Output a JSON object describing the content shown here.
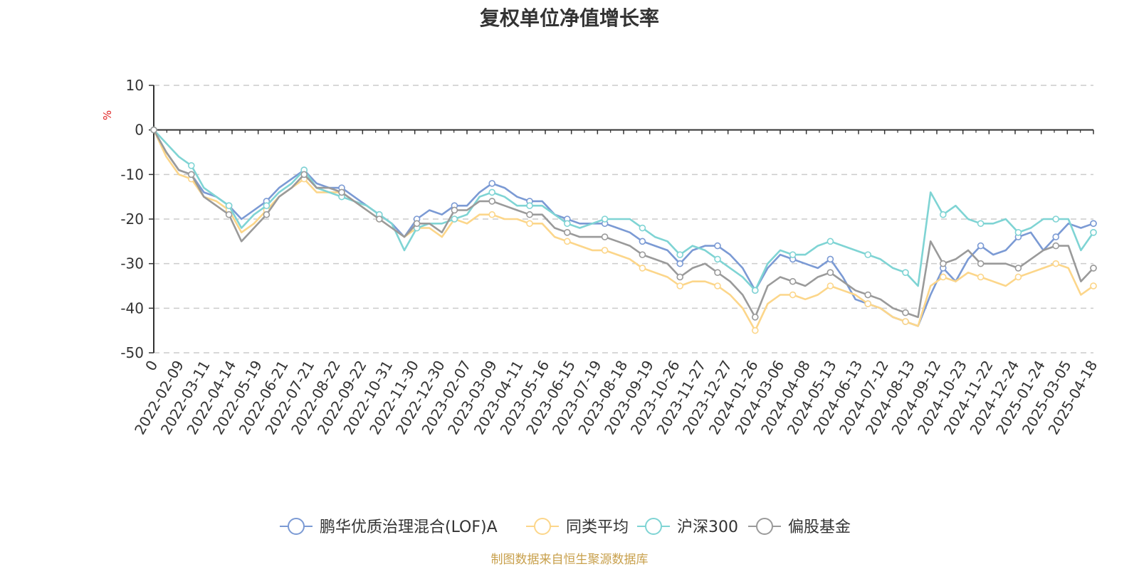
{
  "chart_data": {
    "type": "line",
    "title": "复权单位净值增长率",
    "ylabel": "%",
    "ylim": [
      -50,
      10
    ],
    "yticks": [
      10,
      0,
      -10,
      -20,
      -30,
      -40,
      -50
    ],
    "grid": true,
    "legend_position": "bottom",
    "source": "制图数据来自恒生聚源数据库",
    "x_tick_labels": [
      "0",
      "2022-02-09",
      "2022-03-11",
      "2022-04-14",
      "2022-05-19",
      "2022-06-21",
      "2022-07-21",
      "2022-08-22",
      "2022-09-22",
      "2022-10-31",
      "2022-11-30",
      "2022-12-30",
      "2023-02-07",
      "2023-03-09",
      "2023-04-11",
      "2023-05-16",
      "2023-06-15",
      "2023-07-19",
      "2023-08-18",
      "2023-09-19",
      "2023-10-26",
      "2023-11-27",
      "2023-12-27",
      "2024-01-26",
      "2024-03-06",
      "2024-04-08",
      "2024-05-13",
      "2024-06-13",
      "2024-07-12",
      "2024-08-13",
      "2024-09-12",
      "2024-10-23",
      "2024-11-22",
      "2024-12-24",
      "2025-01-24",
      "2025-03-05",
      "2025-04-18"
    ],
    "series": [
      {
        "name": "鹏华优质治理混合(LOF)A",
        "color": "#7b9ad4",
        "values": [
          0,
          -5,
          -9,
          -10,
          -14,
          -15,
          -17,
          -20,
          -18,
          -16,
          -13,
          -11,
          -9,
          -12,
          -13,
          -13,
          -15,
          -17,
          -19,
          -21,
          -24,
          -20,
          -18,
          -19,
          -17,
          -17,
          -14,
          -12,
          -13,
          -15,
          -16,
          -16,
          -19,
          -20,
          -21,
          -21,
          -21,
          -22,
          -23,
          -25,
          -26,
          -27,
          -30,
          -27,
          -26,
          -26,
          -28,
          -31,
          -36,
          -31,
          -28,
          -29,
          -30,
          -31,
          -29,
          -33,
          -38,
          -39,
          -40,
          -42,
          -43,
          -44,
          -37,
          -31,
          -34,
          -29,
          -26,
          -28,
          -27,
          -24,
          -23,
          -27,
          -24,
          -21,
          -22,
          -21
        ]
      },
      {
        "name": "同类平均",
        "color": "#fcd68a",
        "values": [
          0,
          -6,
          -10,
          -11,
          -15,
          -16,
          -18,
          -23,
          -21,
          -18,
          -15,
          -13,
          -11,
          -14,
          -14,
          -14,
          -16,
          -18,
          -20,
          -22,
          -24,
          -22,
          -22,
          -24,
          -20,
          -21,
          -19,
          -19,
          -20,
          -20,
          -21,
          -21,
          -24,
          -25,
          -26,
          -27,
          -27,
          -28,
          -29,
          -31,
          -32,
          -33,
          -35,
          -34,
          -34,
          -35,
          -37,
          -40,
          -45,
          -39,
          -37,
          -37,
          -38,
          -37,
          -35,
          -36,
          -37,
          -39,
          -40,
          -42,
          -43,
          -44,
          -35,
          -33,
          -34,
          -32,
          -33,
          -34,
          -35,
          -33,
          -32,
          -31,
          -30,
          -31,
          -37,
          -35
        ]
      },
      {
        "name": "沪深300",
        "color": "#7fd4d4",
        "values": [
          0,
          -3,
          -6,
          -8,
          -13,
          -15,
          -17,
          -22,
          -19,
          -17,
          -14,
          -12,
          -9,
          -13,
          -14,
          -15,
          -16,
          -17,
          -19,
          -21,
          -27,
          -22,
          -21,
          -21,
          -20,
          -19,
          -15,
          -14,
          -15,
          -17,
          -17,
          -17,
          -19,
          -21,
          -22,
          -21,
          -20,
          -20,
          -20,
          -22,
          -24,
          -25,
          -28,
          -26,
          -27,
          -29,
          -31,
          -33,
          -36,
          -30,
          -27,
          -28,
          -28,
          -26,
          -25,
          -26,
          -27,
          -28,
          -29,
          -31,
          -32,
          -35,
          -14,
          -19,
          -17,
          -20,
          -21,
          -21,
          -20,
          -23,
          -22,
          -20,
          -20,
          -20,
          -27,
          -23
        ]
      },
      {
        "name": "偏股基金",
        "color": "#9a9a9a",
        "values": [
          0,
          -5,
          -9,
          -10,
          -15,
          -17,
          -19,
          -25,
          -22,
          -19,
          -15,
          -13,
          -10,
          -13,
          -13,
          -14,
          -16,
          -18,
          -20,
          -22,
          -24,
          -21,
          -21,
          -23,
          -18,
          -18,
          -16,
          -16,
          -17,
          -18,
          -19,
          -19,
          -22,
          -23,
          -24,
          -24,
          -24,
          -25,
          -26,
          -28,
          -29,
          -30,
          -33,
          -31,
          -30,
          -32,
          -34,
          -37,
          -42,
          -35,
          -33,
          -34,
          -35,
          -33,
          -32,
          -34,
          -36,
          -37,
          -38,
          -40,
          -41,
          -42,
          -25,
          -30,
          -29,
          -27,
          -30,
          -30,
          -30,
          -31,
          -29,
          -27,
          -26,
          -26,
          -34,
          -31
        ]
      }
    ]
  }
}
